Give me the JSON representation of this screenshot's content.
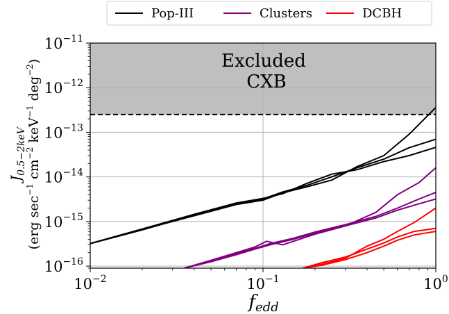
{
  "chart_data": {
    "type": "line",
    "x_scale": "log",
    "y_scale": "log",
    "xlim": [
      0.01,
      1
    ],
    "ylim": [
      9e-17,
      1e-11
    ],
    "grid": true,
    "legend_position": "top, outside plot",
    "xlabel": "f_edd",
    "ylabel_line1": "J_{0.5-2keV}",
    "ylabel_line2": "(erg sec^-1 cm^-2 keV^-1 deg^-2)",
    "x_ticks": [
      {
        "value": 0.01,
        "base": "10",
        "exp": "−2"
      },
      {
        "value": 0.1,
        "base": "10",
        "exp": "−1"
      },
      {
        "value": 1,
        "base": "10",
        "exp": "0"
      }
    ],
    "y_ticks": [
      {
        "value": 1e-16,
        "base": "10",
        "exp": "−16"
      },
      {
        "value": 1e-15,
        "base": "10",
        "exp": "−15"
      },
      {
        "value": 1e-14,
        "base": "10",
        "exp": "−14"
      },
      {
        "value": 1e-13,
        "base": "10",
        "exp": "−13"
      },
      {
        "value": 1e-12,
        "base": "10",
        "exp": "−12"
      },
      {
        "value": 1e-11,
        "base": "10",
        "exp": "−11"
      }
    ],
    "excluded_region": {
      "y_min": 2.5e-13,
      "label_line1": "Excluded",
      "label_line2": "CXB",
      "fill": "#bfbfbf"
    },
    "legend": [
      {
        "name": "Pop-III",
        "color": "#000000"
      },
      {
        "name": "Clusters",
        "color": "#800080"
      },
      {
        "name": "DCBH",
        "color": "#ff0000"
      }
    ],
    "series": [
      {
        "group": "Pop-III",
        "color": "#000000",
        "points": [
          [
            0.01,
            3.2e-16
          ],
          [
            0.02,
            6.5e-16
          ],
          [
            0.04,
            1.4e-15
          ],
          [
            0.07,
            2.5e-15
          ],
          [
            0.1,
            3.2e-15
          ],
          [
            0.13,
            4.6e-15
          ],
          [
            0.18,
            6.5e-15
          ],
          [
            0.25,
            1e-14
          ],
          [
            0.35,
            1.6e-14
          ],
          [
            0.5,
            2.5e-14
          ],
          [
            0.7,
            4.5e-14
          ],
          [
            1.0,
            7e-14
          ]
        ]
      },
      {
        "group": "Pop-III",
        "color": "#000000",
        "points": [
          [
            0.01,
            3.2e-16
          ],
          [
            0.02,
            6.8e-16
          ],
          [
            0.04,
            1.45e-15
          ],
          [
            0.07,
            2.6e-15
          ],
          [
            0.1,
            3.3e-15
          ],
          [
            0.13,
            4.2e-15
          ],
          [
            0.18,
            7.2e-15
          ],
          [
            0.25,
            1.15e-14
          ],
          [
            0.35,
            1.45e-14
          ],
          [
            0.5,
            2.2e-14
          ],
          [
            0.7,
            3e-14
          ],
          [
            1.0,
            4.6e-14
          ]
        ]
      },
      {
        "group": "Pop-III",
        "color": "#000000",
        "points": [
          [
            0.01,
            3.2e-16
          ],
          [
            0.02,
            6.6e-16
          ],
          [
            0.04,
            1.35e-15
          ],
          [
            0.07,
            2.4e-15
          ],
          [
            0.1,
            3e-15
          ],
          [
            0.13,
            4.4e-15
          ],
          [
            0.18,
            6e-15
          ],
          [
            0.25,
            8.5e-15
          ],
          [
            0.35,
            1.7e-14
          ],
          [
            0.5,
            3e-14
          ],
          [
            0.7,
            9e-14
          ],
          [
            1.0,
            3.6e-13
          ]
        ]
      },
      {
        "group": "Clusters",
        "color": "#800080",
        "points": [
          [
            0.035,
            9e-17
          ],
          [
            0.05,
            1.3e-16
          ],
          [
            0.07,
            1.9e-16
          ],
          [
            0.09,
            2.5e-16
          ],
          [
            0.11,
            3.2e-16
          ],
          [
            0.15,
            4.2e-16
          ],
          [
            0.2,
            5.8e-16
          ],
          [
            0.3,
            8.5e-16
          ],
          [
            0.45,
            1.3e-15
          ],
          [
            0.6,
            2e-15
          ],
          [
            0.8,
            3.2e-15
          ],
          [
            1.0,
            4.5e-15
          ]
        ]
      },
      {
        "group": "Clusters",
        "color": "#800080",
        "points": [
          [
            0.035,
            9e-17
          ],
          [
            0.05,
            1.35e-16
          ],
          [
            0.07,
            2e-16
          ],
          [
            0.09,
            2.7e-16
          ],
          [
            0.105,
            3.6e-16
          ],
          [
            0.13,
            3e-16
          ],
          [
            0.2,
            5.2e-16
          ],
          [
            0.3,
            8e-16
          ],
          [
            0.45,
            1.6e-15
          ],
          [
            0.6,
            4e-15
          ],
          [
            0.8,
            7.5e-15
          ],
          [
            1.0,
            1.6e-14
          ]
        ]
      },
      {
        "group": "Clusters",
        "color": "#800080",
        "points": [
          [
            0.035,
            9e-17
          ],
          [
            0.05,
            1.25e-16
          ],
          [
            0.07,
            1.8e-16
          ],
          [
            0.09,
            2.4e-16
          ],
          [
            0.11,
            3e-16
          ],
          [
            0.15,
            4e-16
          ],
          [
            0.2,
            5.5e-16
          ],
          [
            0.3,
            8e-16
          ],
          [
            0.45,
            1.2e-15
          ],
          [
            0.6,
            1.8e-15
          ],
          [
            0.8,
            2.5e-15
          ],
          [
            1.0,
            3.2e-15
          ]
        ]
      },
      {
        "group": "DCBH",
        "color": "#ff0000",
        "points": [
          [
            0.17,
            9e-17
          ],
          [
            0.22,
            1.2e-16
          ],
          [
            0.3,
            1.6e-16
          ],
          [
            0.4,
            2.4e-16
          ],
          [
            0.5,
            3.3e-16
          ],
          [
            0.6,
            4.5e-16
          ],
          [
            0.75,
            6e-16
          ],
          [
            1.0,
            7e-16
          ]
        ]
      },
      {
        "group": "DCBH",
        "color": "#ff0000",
        "points": [
          [
            0.17,
            9e-17
          ],
          [
            0.22,
            1.1e-16
          ],
          [
            0.3,
            1.5e-16
          ],
          [
            0.4,
            2.8e-16
          ],
          [
            0.5,
            4e-16
          ],
          [
            0.6,
            6e-16
          ],
          [
            0.75,
            9.5e-16
          ],
          [
            1.0,
            2e-15
          ]
        ]
      },
      {
        "group": "DCBH",
        "color": "#ff0000",
        "points": [
          [
            0.17,
            9e-17
          ],
          [
            0.22,
            1.05e-16
          ],
          [
            0.3,
            1.4e-16
          ],
          [
            0.4,
            2e-16
          ],
          [
            0.5,
            2.8e-16
          ],
          [
            0.6,
            3.8e-16
          ],
          [
            0.75,
            5e-16
          ],
          [
            1.0,
            6e-16
          ]
        ]
      }
    ]
  }
}
